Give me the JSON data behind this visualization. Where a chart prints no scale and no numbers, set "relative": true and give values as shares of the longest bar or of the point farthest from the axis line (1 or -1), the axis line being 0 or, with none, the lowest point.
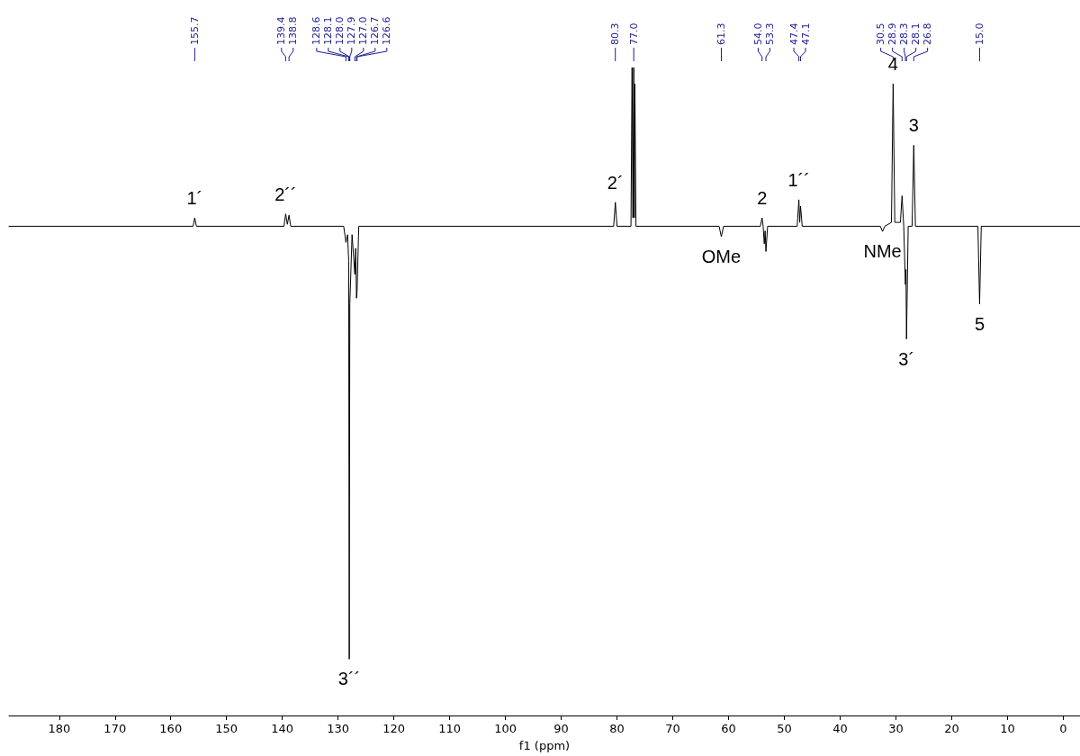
{
  "chart_data": {
    "type": "line",
    "relative": true,
    "xlabel": "f1 (ppm)",
    "marker": "none",
    "xlim": [
      189,
      -3
    ],
    "xticks": [
      180,
      170,
      160,
      150,
      140,
      130,
      120,
      110,
      100,
      90,
      80,
      70,
      60,
      50,
      40,
      30,
      20,
      10,
      0
    ],
    "series": [
      {
        "color": "#000000",
        "x": [
          189,
          156.0,
          155.7,
          155.4,
          139.7,
          139.4,
          139.1,
          138.8,
          138.5,
          129.0,
          128.6,
          128.3,
          128.1,
          128.0,
          127.9,
          127.5,
          127.0,
          126.85,
          126.7,
          126.6,
          126.3,
          80.6,
          80.3,
          80.0,
          77.5,
          77.3,
          77.15,
          77.0,
          76.9,
          76.8,
          76.6,
          61.7,
          61.3,
          60.9,
          54.3,
          54.0,
          53.8,
          53.6,
          53.45,
          53.3,
          53.0,
          47.7,
          47.4,
          47.25,
          47.1,
          46.8,
          32.8,
          32.4,
          32.0,
          30.8,
          30.5,
          30.2,
          29.2,
          28.9,
          28.6,
          28.3,
          28.2,
          28.1,
          27.8,
          27.1,
          26.8,
          26.5,
          15.3,
          15.0,
          14.7,
          -3
        ],
        "values": [
          0.755,
          0.755,
          0.768,
          0.755,
          0.755,
          0.774,
          0.758,
          0.772,
          0.755,
          0.755,
          0.73,
          0.742,
          0.701,
          0.087,
          0.635,
          0.742,
          0.681,
          0.721,
          0.644,
          0.655,
          0.755,
          0.755,
          0.792,
          0.755,
          0.755,
          1.0,
          0.768,
          1.0,
          0.768,
          0.975,
          0.755,
          0.755,
          0.739,
          0.755,
          0.755,
          0.768,
          0.755,
          0.728,
          0.748,
          0.716,
          0.755,
          0.755,
          0.796,
          0.761,
          0.786,
          0.755,
          0.755,
          0.747,
          0.755,
          0.761,
          0.975,
          0.761,
          0.761,
          0.802,
          0.755,
          0.665,
          0.688,
          0.581,
          0.755,
          0.755,
          0.88,
          0.755,
          0.755,
          0.635,
          0.755,
          0.755
        ]
      }
    ],
    "annotations": [
      {
        "text": "155.7",
        "x": 155.7
      },
      {
        "text": "139.4",
        "x": 139.4
      },
      {
        "text": "138.8",
        "x": 138.8
      },
      {
        "text": "128.6",
        "x": 128.6
      },
      {
        "text": "128.1",
        "x": 128.1
      },
      {
        "text": "128.0",
        "x": 128.0
      },
      {
        "text": "127.9",
        "x": 127.9
      },
      {
        "text": "127.0",
        "x": 127.0
      },
      {
        "text": "126.7",
        "x": 126.7
      },
      {
        "text": "126.6",
        "x": 126.6
      },
      {
        "text": "80.3",
        "x": 80.3
      },
      {
        "text": "77.0",
        "x": 77.0
      },
      {
        "text": "61.3",
        "x": 61.3
      },
      {
        "text": "54.0",
        "x": 54.0
      },
      {
        "text": "53.3",
        "x": 53.3
      },
      {
        "text": "47.4",
        "x": 47.4
      },
      {
        "text": "47.1",
        "x": 47.1
      },
      {
        "text": "30.5",
        "x": 30.5
      },
      {
        "text": "28.9",
        "x": 28.9
      },
      {
        "text": "28.3",
        "x": 28.3
      },
      {
        "text": "28.1",
        "x": 28.1
      },
      {
        "text": "26.8",
        "x": 26.8
      },
      {
        "text": "15.0",
        "x": 15.0
      },
      {
        "text": "1´",
        "x": 155.7,
        "y": 0.768
      },
      {
        "text": "2´´",
        "x": 139.4,
        "y": 0.774
      },
      {
        "text": "3´´",
        "x": 128.0,
        "y": 0.087
      },
      {
        "text": "2´",
        "x": 80.3,
        "y": 0.792
      },
      {
        "text": "OMe",
        "x": 61.3,
        "y": 0.739
      },
      {
        "text": "2",
        "x": 54.0,
        "y": 0.768
      },
      {
        "text": "1´´",
        "x": 47.4,
        "y": 0.796
      },
      {
        "text": "4",
        "x": 30.5,
        "y": 0.975
      },
      {
        "text": "NMe",
        "x": 32.4,
        "y": 0.747
      },
      {
        "text": "3",
        "x": 26.8,
        "y": 0.88
      },
      {
        "text": "3´",
        "x": 28.1,
        "y": 0.581
      },
      {
        "text": "5",
        "x": 15.0,
        "y": 0.635
      }
    ]
  }
}
